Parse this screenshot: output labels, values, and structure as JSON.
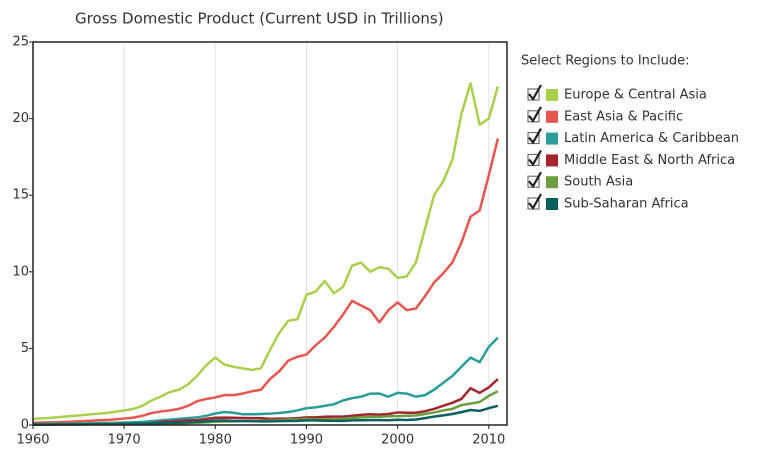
{
  "chart_data": {
    "type": "line",
    "title": "Gross Domestic Product (Current USD in Trillions)",
    "legend_title": "Select Regions to Include:",
    "x": [
      1960,
      1961,
      1962,
      1963,
      1964,
      1965,
      1966,
      1967,
      1968,
      1969,
      1970,
      1971,
      1972,
      1973,
      1974,
      1975,
      1976,
      1977,
      1978,
      1979,
      1980,
      1981,
      1982,
      1983,
      1984,
      1985,
      1986,
      1987,
      1988,
      1989,
      1990,
      1991,
      1992,
      1993,
      1994,
      1995,
      1996,
      1997,
      1998,
      1999,
      2000,
      2001,
      2002,
      2003,
      2004,
      2005,
      2006,
      2007,
      2008,
      2009,
      2010,
      2011
    ],
    "xlim": [
      1960,
      2012
    ],
    "xticks": [
      1960,
      1970,
      1980,
      1990,
      2000,
      2010
    ],
    "ylim": [
      0,
      25
    ],
    "yticks": [
      0,
      5,
      10,
      15,
      20,
      25
    ],
    "grid": "x",
    "legend": "right",
    "series": [
      {
        "name": "Europe & Central Asia",
        "color": "#a8d04a",
        "values": [
          0.4,
          0.43,
          0.47,
          0.52,
          0.57,
          0.62,
          0.68,
          0.73,
          0.78,
          0.86,
          0.95,
          1.05,
          1.25,
          1.6,
          1.85,
          2.15,
          2.3,
          2.65,
          3.2,
          3.9,
          4.4,
          3.95,
          3.8,
          3.7,
          3.6,
          3.7,
          4.9,
          6.0,
          6.8,
          6.9,
          8.5,
          8.7,
          9.4,
          8.6,
          9.0,
          10.4,
          10.6,
          10.0,
          10.3,
          10.2,
          9.6,
          9.7,
          10.6,
          12.8,
          15.0,
          15.9,
          17.3,
          20.3,
          22.3,
          19.6,
          20.0,
          22.1
        ]
      },
      {
        "name": "East Asia & Pacific",
        "color": "#e9554f",
        "values": [
          0.15,
          0.16,
          0.17,
          0.19,
          0.21,
          0.24,
          0.27,
          0.3,
          0.33,
          0.37,
          0.42,
          0.48,
          0.6,
          0.78,
          0.88,
          0.95,
          1.05,
          1.25,
          1.55,
          1.7,
          1.8,
          1.95,
          1.95,
          2.05,
          2.2,
          2.3,
          3.0,
          3.5,
          4.2,
          4.45,
          4.6,
          5.2,
          5.7,
          6.4,
          7.2,
          8.1,
          7.8,
          7.5,
          6.7,
          7.5,
          8.0,
          7.5,
          7.6,
          8.4,
          9.3,
          9.9,
          10.6,
          11.9,
          13.6,
          14.0,
          16.3,
          18.7
        ]
      },
      {
        "name": "Latin America & Caribbean",
        "color": "#2a9d9a",
        "values": [
          0.07,
          0.07,
          0.08,
          0.08,
          0.09,
          0.1,
          0.11,
          0.12,
          0.13,
          0.14,
          0.16,
          0.18,
          0.2,
          0.25,
          0.3,
          0.35,
          0.4,
          0.45,
          0.5,
          0.6,
          0.75,
          0.85,
          0.8,
          0.7,
          0.7,
          0.72,
          0.74,
          0.78,
          0.85,
          0.95,
          1.1,
          1.15,
          1.25,
          1.35,
          1.6,
          1.75,
          1.85,
          2.05,
          2.05,
          1.85,
          2.1,
          2.05,
          1.85,
          1.95,
          2.3,
          2.75,
          3.2,
          3.8,
          4.4,
          4.1,
          5.1,
          5.7
        ]
      },
      {
        "name": "Middle East & North Africa",
        "color": "#a3262e",
        "values": [
          0.02,
          0.02,
          0.03,
          0.03,
          0.03,
          0.04,
          0.04,
          0.05,
          0.05,
          0.06,
          0.06,
          0.07,
          0.08,
          0.11,
          0.2,
          0.23,
          0.27,
          0.3,
          0.32,
          0.4,
          0.47,
          0.48,
          0.47,
          0.46,
          0.45,
          0.45,
          0.4,
          0.42,
          0.42,
          0.44,
          0.5,
          0.5,
          0.54,
          0.55,
          0.55,
          0.6,
          0.66,
          0.7,
          0.68,
          0.72,
          0.82,
          0.8,
          0.8,
          0.9,
          1.05,
          1.25,
          1.45,
          1.7,
          2.4,
          2.1,
          2.45,
          3.0
        ]
      },
      {
        "name": "South Asia",
        "color": "#6a9e3f",
        "values": [
          0.04,
          0.05,
          0.05,
          0.05,
          0.06,
          0.06,
          0.06,
          0.06,
          0.07,
          0.07,
          0.08,
          0.08,
          0.08,
          0.09,
          0.1,
          0.11,
          0.11,
          0.13,
          0.15,
          0.17,
          0.21,
          0.23,
          0.24,
          0.25,
          0.25,
          0.27,
          0.29,
          0.32,
          0.35,
          0.35,
          0.4,
          0.37,
          0.38,
          0.37,
          0.41,
          0.46,
          0.5,
          0.53,
          0.53,
          0.57,
          0.58,
          0.6,
          0.62,
          0.72,
          0.82,
          0.95,
          1.05,
          1.3,
          1.4,
          1.5,
          1.9,
          2.2
        ]
      },
      {
        "name": "Sub-Saharan Africa",
        "color": "#0e5f60",
        "values": [
          0.03,
          0.03,
          0.03,
          0.04,
          0.04,
          0.04,
          0.05,
          0.05,
          0.05,
          0.06,
          0.07,
          0.08,
          0.09,
          0.1,
          0.12,
          0.14,
          0.15,
          0.17,
          0.2,
          0.24,
          0.29,
          0.29,
          0.27,
          0.26,
          0.25,
          0.24,
          0.24,
          0.25,
          0.26,
          0.27,
          0.3,
          0.3,
          0.28,
          0.27,
          0.27,
          0.3,
          0.31,
          0.32,
          0.32,
          0.31,
          0.34,
          0.33,
          0.36,
          0.45,
          0.55,
          0.63,
          0.72,
          0.84,
          0.98,
          0.92,
          1.1,
          1.25
        ]
      }
    ]
  }
}
